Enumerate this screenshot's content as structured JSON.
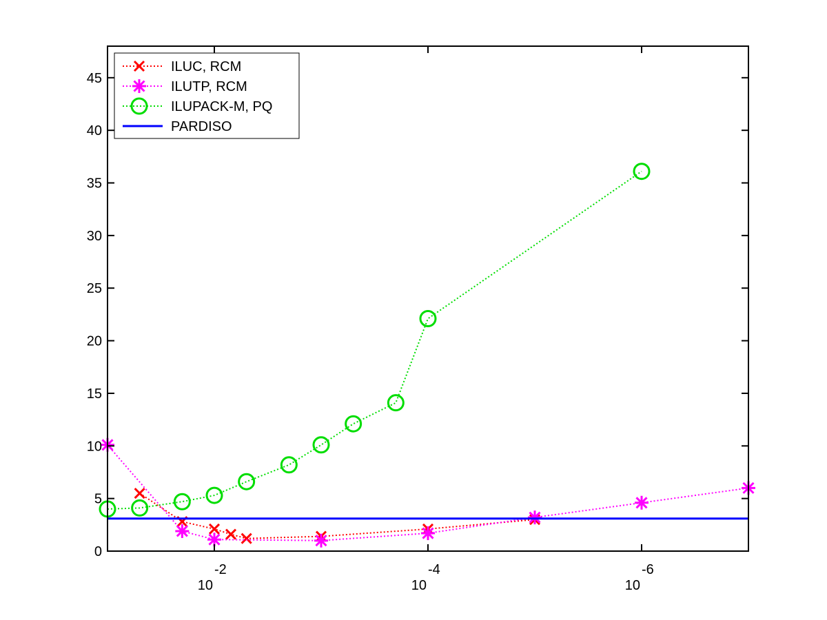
{
  "chart_data": {
    "type": "line",
    "title": "",
    "xlabel": "",
    "ylabel": "",
    "x_scale": "log-reversed",
    "xlim": [
      0.1,
      1e-07
    ],
    "ylim": [
      0,
      48
    ],
    "grid": false,
    "legend_position": "top-left",
    "x_ticks": [
      {
        "value": 0.01,
        "base": "10",
        "exp": "-2"
      },
      {
        "value": 0.0001,
        "base": "10",
        "exp": "-4"
      },
      {
        "value": 1e-06,
        "base": "10",
        "exp": "-6"
      }
    ],
    "y_ticks": [
      {
        "value": 0,
        "label": "0"
      },
      {
        "value": 5,
        "label": "5"
      },
      {
        "value": 10,
        "label": "10"
      },
      {
        "value": 15,
        "label": "15"
      },
      {
        "value": 20,
        "label": "20"
      },
      {
        "value": 25,
        "label": "25"
      },
      {
        "value": 30,
        "label": "30"
      },
      {
        "value": 35,
        "label": "35"
      },
      {
        "value": 40,
        "label": "40"
      },
      {
        "value": 45,
        "label": "45"
      }
    ],
    "series": [
      {
        "name": "ILUC, RCM",
        "color": "#ff0000",
        "marker": "x",
        "line": "dotted",
        "x": [
          0.05,
          0.02,
          0.01,
          0.007,
          0.005,
          0.001,
          0.0001,
          1e-05
        ],
        "y": [
          5.5,
          2.8,
          2.1,
          1.6,
          1.2,
          1.4,
          2.1,
          3.0
        ]
      },
      {
        "name": "ILUTP, RCM",
        "color": "#ff00ff",
        "marker": "star",
        "line": "dotted",
        "x": [
          0.1,
          0.02,
          0.01,
          0.001,
          0.0001,
          1e-05,
          1e-06,
          1e-07
        ],
        "y": [
          10.1,
          1.9,
          1.1,
          1.0,
          1.7,
          3.2,
          4.6,
          6.0
        ]
      },
      {
        "name": "ILUPACK-M, PQ",
        "color": "#00dd00",
        "marker": "circle",
        "line": "dotted",
        "x": [
          0.1,
          0.05,
          0.02,
          0.01,
          0.005,
          0.002,
          0.001,
          0.0005,
          0.0002,
          0.0001,
          1e-06
        ],
        "y": [
          4.0,
          4.1,
          4.7,
          5.3,
          6.6,
          8.2,
          10.1,
          12.1,
          14.1,
          22.1,
          36.1
        ]
      },
      {
        "name": "PARDISO",
        "color": "#0000ff",
        "marker": "none",
        "line": "solid",
        "x": [
          0.1,
          1e-07
        ],
        "y": [
          3.1,
          3.1
        ]
      }
    ]
  }
}
